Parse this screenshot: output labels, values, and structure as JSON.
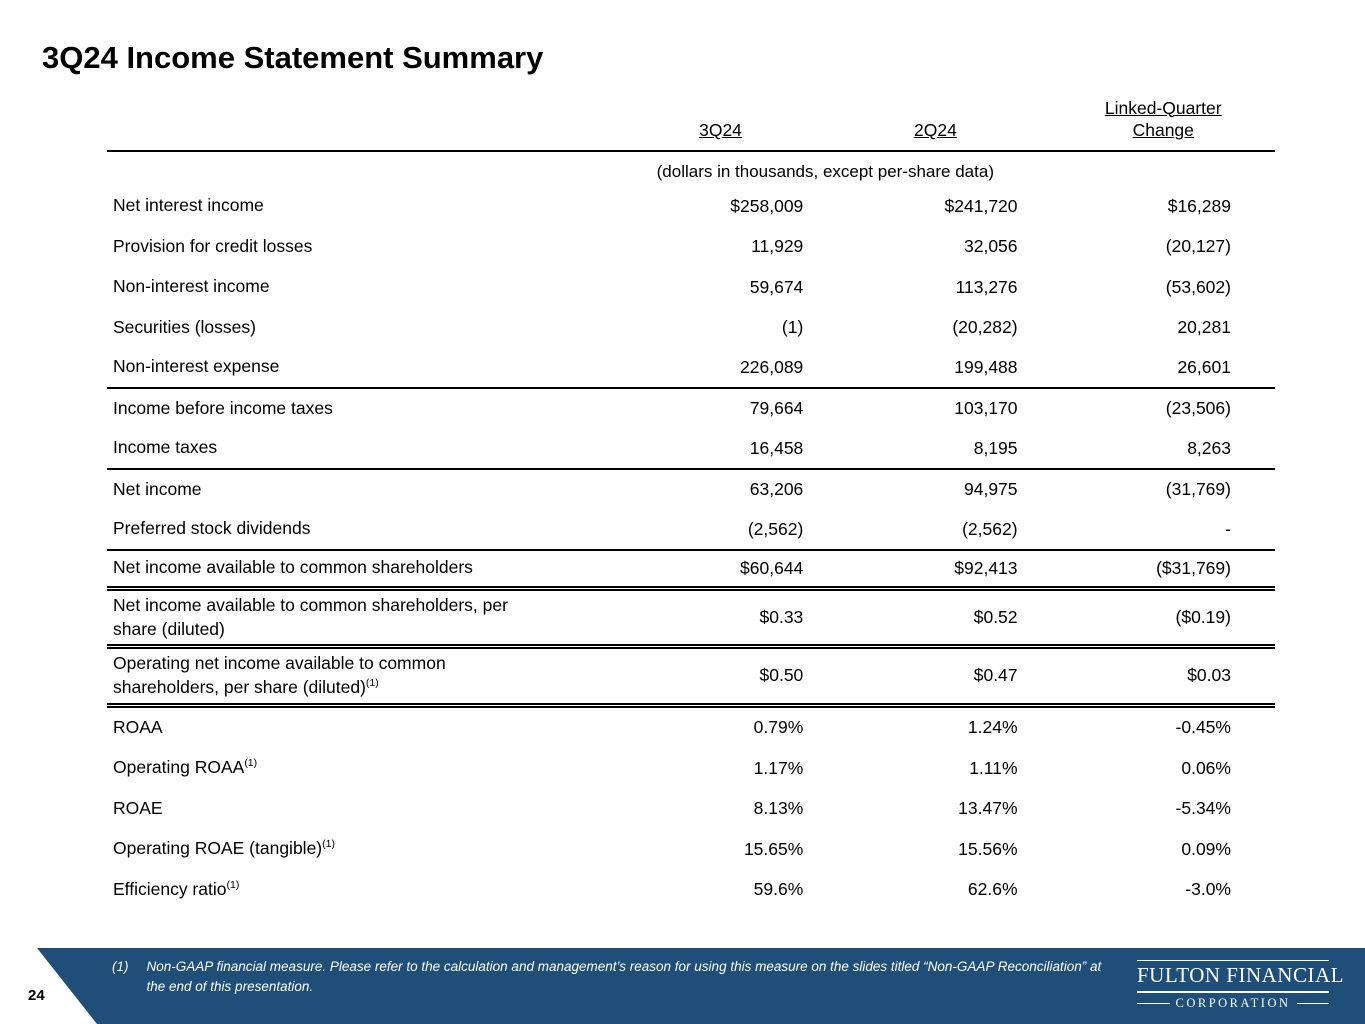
{
  "title": "3Q24 Income Statement Summary",
  "page_number": "24",
  "table": {
    "columns": [
      "3Q24",
      "2Q24",
      "Linked-Quarter Change"
    ],
    "subheader": "(dollars in thousands, except per-share data)",
    "rows": [
      {
        "label": "Net interest income",
        "values": [
          "$258,009",
          "$241,720",
          "$16,289"
        ],
        "rule": "none"
      },
      {
        "label": "Provision for credit losses",
        "values": [
          "11,929",
          "32,056",
          "(20,127)"
        ],
        "rule": "none"
      },
      {
        "label": "Non-interest income",
        "values": [
          "59,674",
          "113,276",
          "(53,602)"
        ],
        "rule": "none"
      },
      {
        "label": "Securities (losses)",
        "values": [
          "(1)",
          "(20,282)",
          "20,281"
        ],
        "rule": "none"
      },
      {
        "label": "Non-interest expense",
        "values": [
          "226,089",
          "199,488",
          "26,601"
        ],
        "rule": "single"
      },
      {
        "label": "Income before income taxes",
        "values": [
          "79,664",
          "103,170",
          "(23,506)"
        ],
        "rule": "none"
      },
      {
        "label": "Income taxes",
        "values": [
          "16,458",
          "8,195",
          "8,263"
        ],
        "rule": "single"
      },
      {
        "label": "Net income",
        "values": [
          "63,206",
          "94,975",
          "(31,769)"
        ],
        "rule": "none"
      },
      {
        "label": "Preferred stock dividends",
        "values": [
          "(2,562)",
          "(2,562)",
          "-"
        ],
        "rule": "single"
      },
      {
        "label": "Net income available to common shareholders",
        "values": [
          "$60,644",
          "$92,413",
          "($31,769)"
        ],
        "rule": "double"
      },
      {
        "label": "Net income available to common shareholders, per share (diluted)",
        "values": [
          "$0.33",
          "$0.52",
          "($0.19)"
        ],
        "rule": "double"
      },
      {
        "label": "Operating net income available to common shareholders, per share (diluted)",
        "sup": "(1)",
        "values": [
          "$0.50",
          "$0.47",
          "$0.03"
        ],
        "rule": "double"
      },
      {
        "label": "ROAA",
        "values": [
          "0.79%",
          "1.24%",
          "-0.45%"
        ],
        "rule": "none"
      },
      {
        "label": "Operating ROAA",
        "sup": "(1)",
        "values": [
          "1.17%",
          "1.11%",
          "0.06%"
        ],
        "rule": "none"
      },
      {
        "label": "ROAE",
        "values": [
          "8.13%",
          "13.47%",
          "-5.34%"
        ],
        "rule": "none"
      },
      {
        "label": "Operating ROAE (tangible)",
        "sup": "(1)",
        "values": [
          "15.65%",
          "15.56%",
          "0.09%"
        ],
        "rule": "none"
      },
      {
        "label": "Efficiency ratio",
        "sup": "(1)",
        "values": [
          "59.6%",
          "62.6%",
          "-3.0%"
        ],
        "rule": "none"
      }
    ]
  },
  "footer": {
    "bar_color": "#1f4e79",
    "footnote_marker": "(1)",
    "footnote_text": "Non-GAAP financial measure. Please refer to the calculation and management’s reason for using this measure on the slides titled “Non-GAAP Reconciliation” at the end of this presentation.",
    "logo_line1": "FULTON FINANCIAL",
    "logo_line2": "CORPORATION"
  }
}
